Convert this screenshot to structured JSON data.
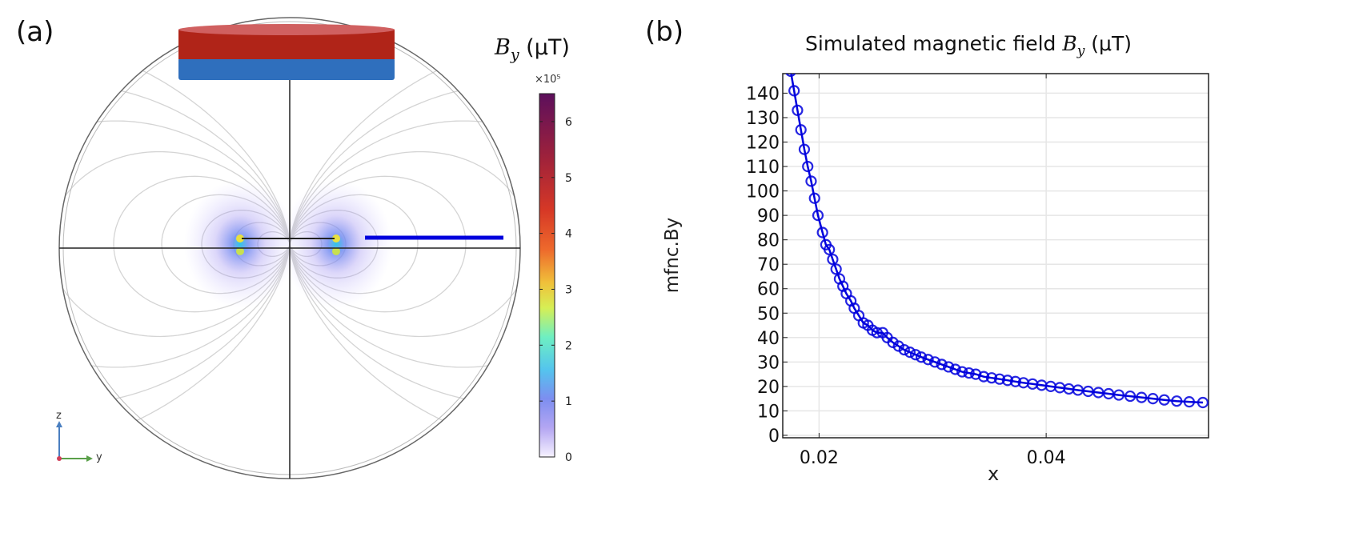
{
  "panel_a": {
    "label": "(a)",
    "colorbar_title_var": "B",
    "colorbar_title_sub": "y",
    "colorbar_title_unit": " (μT)",
    "colorbar_exponent": "×10⁵",
    "colorbar_ticks": [
      "0",
      "1",
      "2",
      "3",
      "4",
      "5",
      "6"
    ],
    "colorbar_range": [
      0,
      6.5
    ],
    "axis_z": "z",
    "axis_y": "y",
    "colors": {
      "magnet_top": "#b02418",
      "magnet_bottom": "#2f6fbd",
      "probe_line": "#0000dd"
    }
  },
  "panel_b": {
    "label": "(b)"
  },
  "chart_data": {
    "type": "line",
    "title_prefix": "Simulated magnetic field ",
    "title_var": "B",
    "title_sub": "y",
    "title_unit": " (μT)",
    "xlabel": "x",
    "ylabel": "mfnc.By",
    "xlim": [
      0.0168,
      0.0543
    ],
    "ylim": [
      -1,
      148
    ],
    "xticks": [
      0.02,
      0.04
    ],
    "xtick_labels": [
      "0.02",
      "0.04"
    ],
    "yticks": [
      0,
      10,
      20,
      30,
      40,
      50,
      60,
      70,
      80,
      90,
      100,
      110,
      120,
      130,
      140
    ],
    "ytick_labels": [
      "0",
      "10",
      "20",
      "30",
      "40",
      "50",
      "60",
      "70",
      "80",
      "90",
      "100",
      "110",
      "120",
      "130",
      "140"
    ],
    "grid": true,
    "series": [
      {
        "name": "mfnc.By",
        "color": "#0000dd",
        "marker": "circle",
        "x": [
          0.0175,
          0.0178,
          0.0181,
          0.0184,
          0.0187,
          0.019,
          0.0193,
          0.0196,
          0.0199,
          0.0203,
          0.0206,
          0.0209,
          0.0212,
          0.0215,
          0.0218,
          0.0221,
          0.0224,
          0.0228,
          0.0231,
          0.0235,
          0.0239,
          0.0243,
          0.0247,
          0.0251,
          0.0256,
          0.026,
          0.0265,
          0.027,
          0.0275,
          0.028,
          0.0285,
          0.029,
          0.0296,
          0.0302,
          0.0308,
          0.0314,
          0.032,
          0.0326,
          0.0332,
          0.0338,
          0.0345,
          0.0352,
          0.0359,
          0.0366,
          0.0373,
          0.038,
          0.0388,
          0.0396,
          0.0404,
          0.0412,
          0.042,
          0.0428,
          0.0437,
          0.0446,
          0.0455,
          0.0464,
          0.0474,
          0.0484,
          0.0494,
          0.0504,
          0.0515,
          0.0526,
          0.0538
        ],
        "y": [
          149,
          141,
          133,
          125,
          117,
          110,
          104,
          97,
          90,
          83,
          78,
          76,
          72,
          68,
          64,
          61,
          58,
          55,
          52,
          49,
          46,
          45,
          43,
          42,
          42,
          40,
          38,
          36.5,
          35,
          34,
          33,
          32,
          31,
          30,
          29,
          28,
          27,
          26,
          25.5,
          25,
          24,
          23.5,
          23,
          22.5,
          22,
          21.5,
          21,
          20.5,
          20,
          19.5,
          19,
          18.5,
          18,
          17.5,
          17,
          16.5,
          16,
          15.5,
          15,
          14.5,
          14,
          13.7,
          13.4
        ]
      }
    ]
  }
}
